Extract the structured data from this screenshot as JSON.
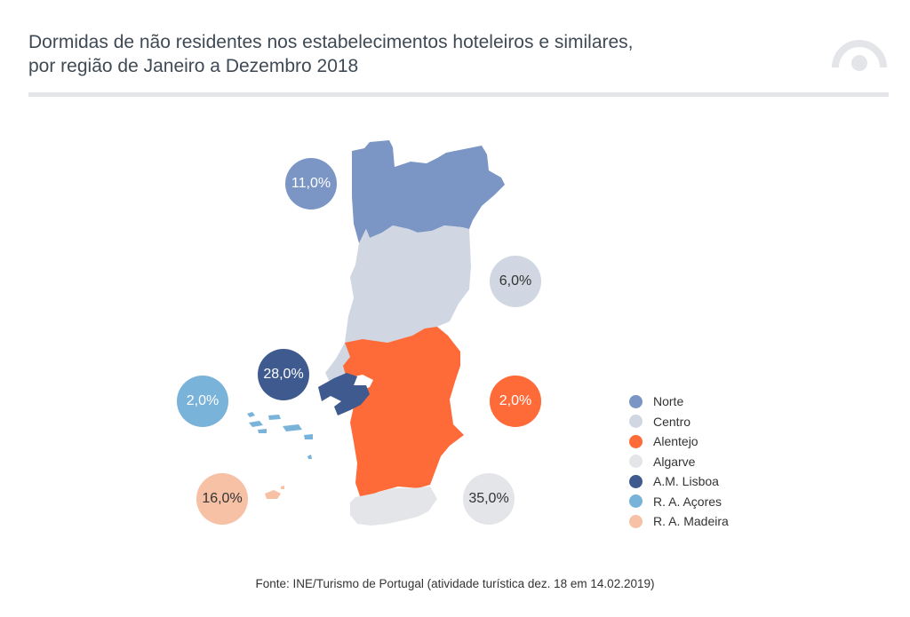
{
  "title": {
    "line1": "Dormidas de não residentes nos estabelecimentos hoteleiros e similares,",
    "line2": "por região de Janeiro a Dezembro 2018"
  },
  "regions": [
    {
      "key": "norte",
      "name": "Norte",
      "value": "11,0%",
      "color": "#7b96c4",
      "text_color": "#ffffff"
    },
    {
      "key": "centro",
      "name": "Centro",
      "value": "6,0%",
      "color": "#d0d7e2",
      "text_color": "#333333"
    },
    {
      "key": "alentejo",
      "name": "Alentejo",
      "value": "2,0%",
      "color": "#ff6a39",
      "text_color": "#ffffff"
    },
    {
      "key": "algarve",
      "name": "Algarve",
      "value": "35,0%",
      "color": "#e4e5e8",
      "text_color": "#333333"
    },
    {
      "key": "lisboa",
      "name": "A.M. Lisboa",
      "value": "28,0%",
      "color": "#3f5a8e",
      "text_color": "#ffffff"
    },
    {
      "key": "acores",
      "name": "R. A. Açores",
      "value": "2,0%",
      "color": "#79b3d9",
      "text_color": "#ffffff"
    },
    {
      "key": "madeira",
      "name": "R. A. Madeira",
      "value": "16,0%",
      "color": "#f6c1a5",
      "text_color": "#333333"
    }
  ],
  "source": "Fonte: INE/Turismo de Portugal (atividade turística dez. 18 em 14.02.2019)"
}
